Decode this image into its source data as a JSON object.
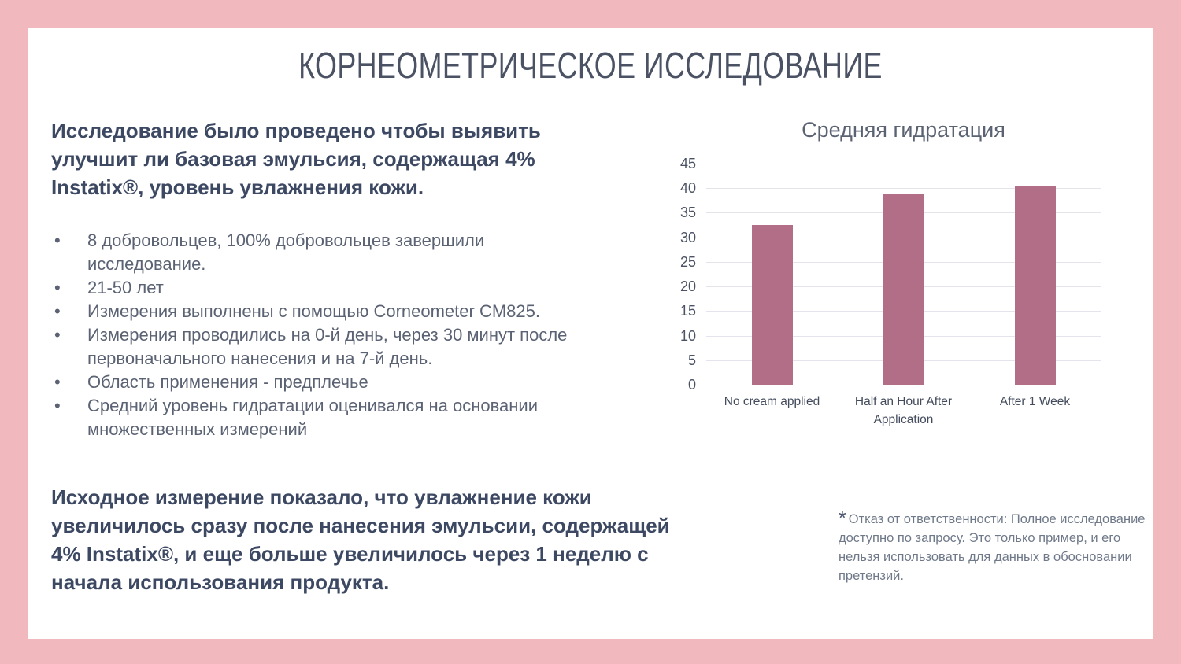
{
  "slide": {
    "title": "КОРНЕОМЕТРИЧЕСКОЕ ИССЛЕДОВАНИЕ",
    "frame_color": "#f1b8bd"
  },
  "left": {
    "intro": "Исследование было проведено чтобы выявить улучшит ли базовая эмульсия, содержащая 4% Instatix®, уровень увлажнения кожи.",
    "bullets": [
      "8 добровольцев, 100% добровольцев завершили исследование.",
      "21-50 лет",
      "Измерения выполнены с помощью Corneometer CM825.",
      "Измерения проводились на 0-й день, через 30 минут после первоначального нанесения и на 7-й день.",
      "Область применения - предплечье",
      "Средний уровень гидратации оценивался на основании множественных измерений"
    ],
    "conclusion": "Исходное измерение показало, что увлажнение кожи увеличилось сразу после нанесения эмульсии, содержащей 4% Instatix®, и еще больше увеличилось через 1 неделю с начала использования продукта."
  },
  "chart_data": {
    "type": "bar",
    "title": "Средняя гидратация",
    "categories": [
      "No cream applied",
      "Half an Hour After Application",
      "After 1 Week"
    ],
    "values": [
      32.5,
      38.7,
      40.4
    ],
    "xlabel": "",
    "ylabel": "",
    "ylim": [
      0,
      45
    ],
    "ytick_step": 5,
    "bar_color": "#b26e86",
    "grid": true,
    "legend": false
  },
  "disclaimer": {
    "asterisk": "*",
    "text": "Отказ от ответственности: Полное исследование доступно по запросу. Это только пример, и его нельзя использовать для данных в обосновании претензий."
  }
}
